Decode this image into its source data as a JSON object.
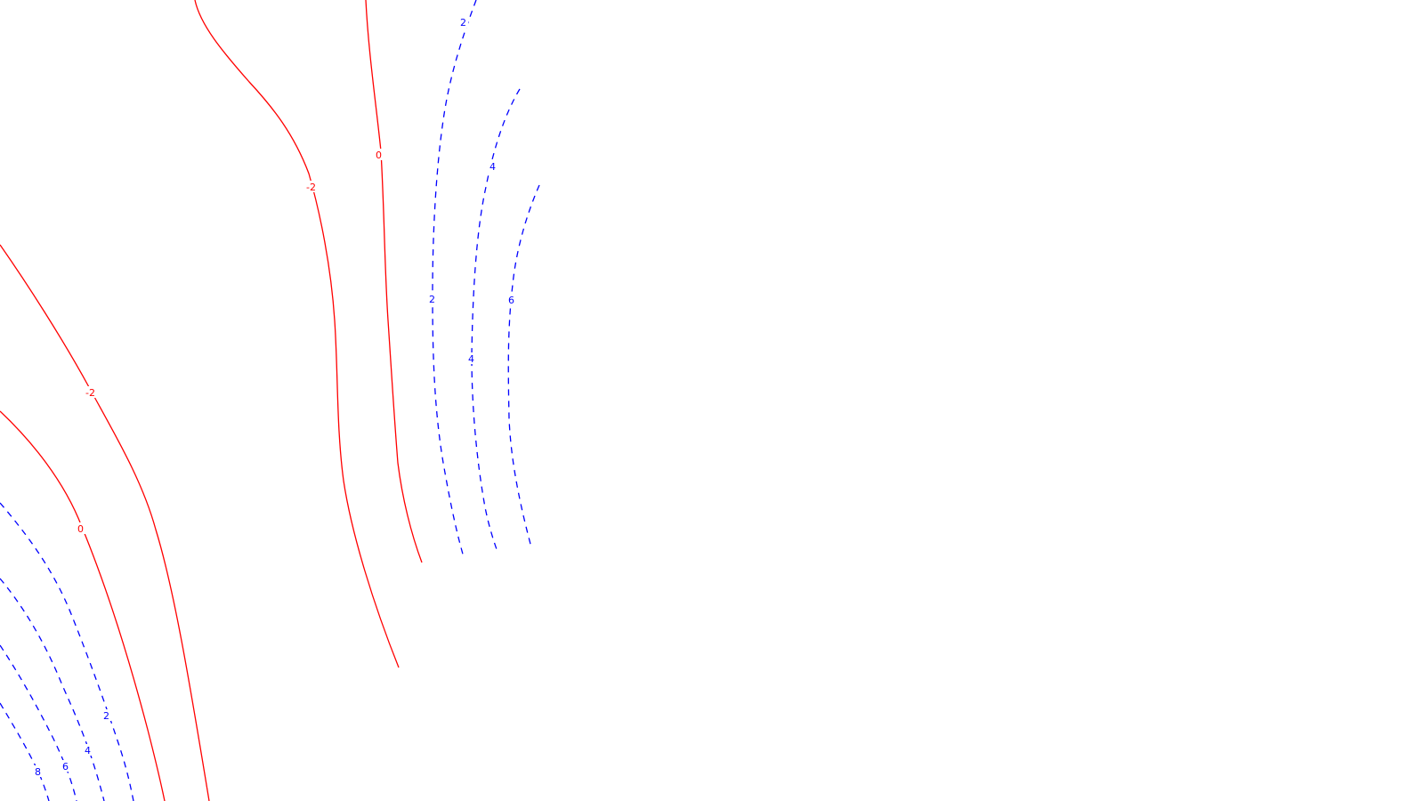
{
  "colors": {
    "background": "#ffffff",
    "negative_contour": "#ff0000",
    "positive_contour": "#0000ff"
  },
  "contour_labels": {
    "red_top_minus2": "-2",
    "red_top_zero": "0",
    "red_left_minus2": "-2",
    "red_left_zero": "0",
    "blue_top_2a": "2",
    "blue_top_2b": "2",
    "blue_top_4a": "4",
    "blue_top_4b": "4",
    "blue_top_6": "6",
    "blue_bottom_2": "2",
    "blue_bottom_4": "4",
    "blue_bottom_6": "6",
    "blue_bottom_8": "8"
  }
}
